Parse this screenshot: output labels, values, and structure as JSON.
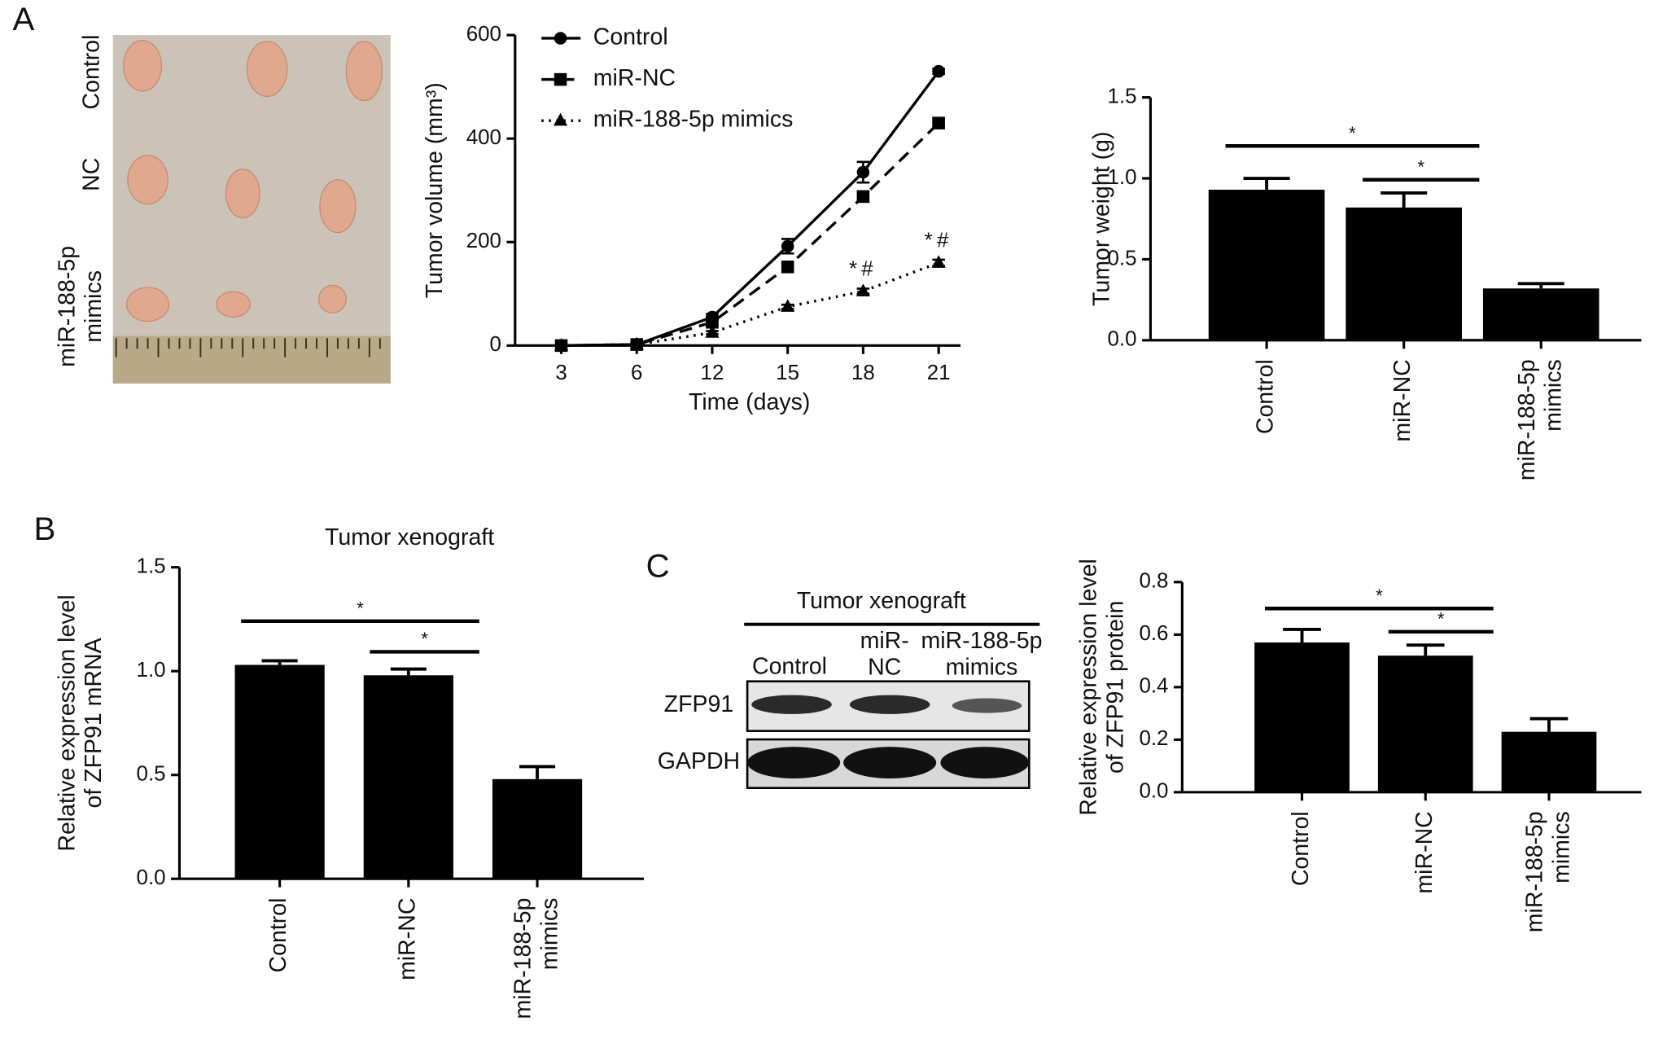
{
  "panel_labels": [
    "A",
    "B",
    "C"
  ],
  "photo": {
    "row_labels": [
      "Control",
      "NC",
      "miR-188-5p\nmimics"
    ]
  },
  "blot": {
    "title": "Tumor xenograft",
    "lanes": [
      "Control",
      "miR-\nNC",
      "miR-188-5p\nmimics"
    ],
    "rows": [
      "ZFP91",
      "GAPDH"
    ]
  },
  "chart_data": [
    {
      "type": "line",
      "ylabel": "Tumor volume (mm³)",
      "xlabel": "Time (days)",
      "categories": [
        3,
        6,
        12,
        15,
        18,
        21
      ],
      "series": [
        {
          "name": "Control",
          "color": "#000000",
          "marker": "circle",
          "dash": "solid",
          "values": [
            0,
            2,
            55,
            192,
            335,
            530
          ],
          "errors": [
            0,
            0,
            6,
            14,
            20,
            5
          ]
        },
        {
          "name": "miR-NC",
          "color": "#000000",
          "marker": "square",
          "dash": "dashed",
          "values": [
            0,
            2,
            45,
            152,
            288,
            430
          ],
          "errors": [
            0,
            0,
            4,
            8,
            10,
            8
          ]
        },
        {
          "name": "miR-188-5p mimics",
          "color": "#000000",
          "marker": "triangle",
          "dash": "dotted",
          "values": [
            0,
            2,
            25,
            75,
            105,
            160
          ],
          "errors": [
            0,
            0,
            3,
            4,
            5,
            6
          ]
        }
      ],
      "annotations": [
        {
          "series": 2,
          "category": 18,
          "text": "*#"
        },
        {
          "series": 2,
          "category": 21,
          "text": "*#"
        }
      ],
      "ylim": [
        0,
        600
      ],
      "yticks": [
        0,
        200,
        400,
        600
      ]
    },
    {
      "type": "bar",
      "ylabel": "Tumor weight (g)",
      "categories": [
        "Control",
        "miR-NC",
        "miR-188-5p\nmimics"
      ],
      "values": [
        0.93,
        0.82,
        0.32
      ],
      "errors": [
        0.07,
        0.09,
        0.03
      ],
      "color": "#000000",
      "ylim": [
        0,
        1.5
      ],
      "yticks": [
        {
          "value": 0,
          "label": "0.0"
        },
        {
          "value": 0.5,
          "label": "0.5"
        },
        {
          "value": 1,
          "label": "1.0"
        },
        {
          "value": 1.5,
          "label": "1.5"
        }
      ],
      "brackets": [
        {
          "from": 0,
          "to": 2,
          "label": "*"
        },
        {
          "from": 1,
          "to": 2,
          "label": "*"
        }
      ]
    },
    {
      "type": "bar",
      "title": "Tumor xenograft",
      "ylabel": "Relative expression level\nof  ZFP91 mRNA",
      "categories": [
        "Control",
        "miR-NC",
        "miR-188-5p\nmimics"
      ],
      "values": [
        1.03,
        0.98,
        0.48
      ],
      "errors": [
        0.02,
        0.03,
        0.06
      ],
      "color": "#000000",
      "ylim": [
        0,
        1.5
      ],
      "yticks": [
        {
          "value": 0,
          "label": "0.0"
        },
        {
          "value": 0.5,
          "label": "0.5"
        },
        {
          "value": 1,
          "label": "1.0"
        },
        {
          "value": 1.5,
          "label": "1.5"
        }
      ],
      "brackets": [
        {
          "from": 0,
          "to": 2,
          "label": "*"
        },
        {
          "from": 1,
          "to": 2,
          "label": "*"
        }
      ]
    },
    {
      "type": "bar",
      "ylabel": "Relative expression level\nof  ZFP91 protein",
      "categories": [
        "Control",
        "miR-NC",
        "miR-188-5p\nmimics"
      ],
      "values": [
        0.57,
        0.52,
        0.23
      ],
      "errors": [
        0.05,
        0.04,
        0.05
      ],
      "color": "#000000",
      "ylim": [
        0,
        0.8
      ],
      "yticks": [
        {
          "value": 0,
          "label": "0.0"
        },
        {
          "value": 0.2,
          "label": "0.2"
        },
        {
          "value": 0.4,
          "label": "0.4"
        },
        {
          "value": 0.6,
          "label": "0.6"
        },
        {
          "value": 0.8,
          "label": "0.8"
        }
      ],
      "brackets": [
        {
          "from": 0,
          "to": 2,
          "label": "*"
        },
        {
          "from": 1,
          "to": 2,
          "label": "*"
        }
      ]
    }
  ]
}
